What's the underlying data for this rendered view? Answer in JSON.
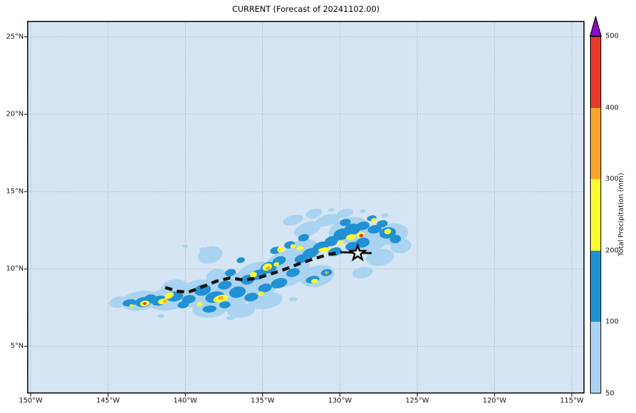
{
  "chart_data": {
    "type": "heatmap",
    "title": "CURRENT (Forecast of 20241102.00)",
    "xlabel": "",
    "ylabel": "",
    "grid": true,
    "lon_range": [
      -150.23,
      -114.18
    ],
    "lat_range": [
      1.95,
      26.03
    ],
    "x_ticks": [
      {
        "lon": -150,
        "label": "150°W"
      },
      {
        "lon": -145,
        "label": "145°W"
      },
      {
        "lon": -140,
        "label": "140°W"
      },
      {
        "lon": -135,
        "label": "135°W"
      },
      {
        "lon": -130,
        "label": "130°W"
      },
      {
        "lon": -125,
        "label": "125°W"
      },
      {
        "lon": -120,
        "label": "120°W"
      },
      {
        "lon": -115,
        "label": "115°W"
      }
    ],
    "y_ticks": [
      {
        "lat": 25,
        "label": "25°N"
      },
      {
        "lat": 20,
        "label": "20°N"
      },
      {
        "lat": 15,
        "label": "15°N"
      },
      {
        "lat": 10,
        "label": "10°N"
      },
      {
        "lat": 5,
        "label": "5°N"
      }
    ],
    "colors": {
      "figure_background": "#ffffff",
      "map_background": "#d5e5f3",
      "grid": "#8f9aa5",
      "frame": "#000000",
      "track": "#141414",
      "star_fill": "#ffffff",
      "star_stroke": "#000000",
      "level_colors": {
        "light": "#a9d3f0",
        "moderate": "#2191d4",
        "heavy": "#fbfb2f",
        "very_heavy": "#fca629",
        "intense": "#e8392b"
      }
    },
    "colorbar": {
      "label": "Total Precipitation (mm)",
      "ticks": [
        "50",
        "100",
        "200",
        "300",
        "400",
        "500"
      ],
      "levels": [
        {
          "range_mm": "50-100",
          "color": "#a9d3f0"
        },
        {
          "range_mm": "100-200",
          "color": "#2191d4"
        },
        {
          "range_mm": "200-300",
          "color": "#fbfb2f"
        },
        {
          "range_mm": "300-400",
          "color": "#fca629"
        },
        {
          "range_mm": "400-500",
          "color": "#e8392b"
        }
      ],
      "over_color": "#8b0bd0"
    },
    "track": {
      "style": "dashed",
      "points": [
        [
          -141.3,
          8.8
        ],
        [
          -140.45,
          8.55
        ],
        [
          -139.8,
          8.5
        ],
        [
          -138.9,
          8.84
        ],
        [
          -138.0,
          9.2
        ],
        [
          -137.1,
          9.42
        ],
        [
          -136.2,
          9.28
        ],
        [
          -135.3,
          9.42
        ],
        [
          -134.4,
          9.7
        ],
        [
          -133.5,
          10.0
        ],
        [
          -132.6,
          10.35
        ],
        [
          -131.7,
          10.65
        ],
        [
          -130.8,
          10.92
        ],
        [
          -129.9,
          11.08
        ]
      ],
      "solid_tail": [
        [
          -129.9,
          11.08
        ],
        [
          -127.95,
          11.02
        ]
      ]
    },
    "storm_center": {
      "lon": -128.85,
      "lat": 11.02,
      "marker": "star"
    },
    "precip_blobs": {
      "light": [
        [
          -144.3,
          7.85,
          14,
          8,
          -10
        ],
        [
          -142.9,
          7.95,
          28,
          14,
          -8
        ],
        [
          -141.1,
          8.05,
          30,
          16,
          -8
        ],
        [
          -139.1,
          8.4,
          30,
          20,
          -10
        ],
        [
          -138.4,
          10.9,
          18,
          12,
          -15
        ],
        [
          -137.1,
          8.6,
          35,
          25,
          -12
        ],
        [
          -135.3,
          9.3,
          35,
          25,
          -15
        ],
        [
          -138.4,
          7.4,
          25,
          12,
          -5
        ],
        [
          -136.4,
          7.3,
          20,
          10,
          -5
        ],
        [
          -133.5,
          10.0,
          35,
          25,
          -18
        ],
        [
          -132.5,
          11.2,
          25,
          15,
          -18
        ],
        [
          -132.1,
          12.56,
          20,
          10,
          -20
        ],
        [
          -130.8,
          13.15,
          18,
          8,
          -15
        ],
        [
          -129.4,
          12.5,
          30,
          18,
          -15
        ],
        [
          -128.1,
          11.9,
          28,
          18,
          -12
        ],
        [
          -126.7,
          12.25,
          25,
          15,
          -10
        ],
        [
          -126.05,
          11.47,
          15,
          10,
          -10
        ],
        [
          -127.4,
          10.75,
          20,
          12,
          -10
        ],
        [
          -129.66,
          13.6,
          12,
          6,
          -15
        ],
        [
          -134.84,
          7.96,
          25,
          12,
          -8
        ],
        [
          -131.45,
          9.54,
          25,
          15,
          -15
        ],
        [
          -128.53,
          9.76,
          15,
          8,
          -10
        ],
        [
          -140.68,
          8.77,
          20,
          12,
          -8
        ],
        [
          -137.99,
          9.54,
          15,
          10,
          -12
        ],
        [
          -133.03,
          13.15,
          15,
          7,
          -15
        ],
        [
          -131.68,
          13.6,
          12,
          6,
          -15
        ],
        [
          -140.01,
          11.47,
          4,
          2.5,
          0
        ],
        [
          -138.88,
          11.25,
          5,
          3,
          0
        ],
        [
          -131.77,
          13.37,
          6,
          3,
          0
        ],
        [
          -130.55,
          13.82,
          5,
          2.5,
          0
        ],
        [
          -128.53,
          13.73,
          4,
          2.5,
          0
        ],
        [
          -127.09,
          13.46,
          5,
          3,
          0
        ],
        [
          -141.58,
          6.96,
          5,
          3,
          0
        ],
        [
          -137.08,
          6.83,
          6,
          3,
          0
        ],
        [
          -133.03,
          8.04,
          6,
          3,
          0
        ]
      ],
      "moderate": [
        [
          -143.61,
          7.81,
          10,
          5,
          -8
        ],
        [
          -142.71,
          7.86,
          12,
          7,
          -8
        ],
        [
          -141.68,
          7.95,
          12,
          7,
          -10
        ],
        [
          -140.68,
          8.22,
          12,
          7,
          -10
        ],
        [
          -139.78,
          8.04,
          10,
          6,
          -10
        ],
        [
          -138.88,
          8.63,
          12,
          8,
          -12
        ],
        [
          -138.08,
          8.18,
          14,
          8,
          -12
        ],
        [
          -137.44,
          8.95,
          10,
          6,
          -12
        ],
        [
          -136.63,
          8.5,
          12,
          8,
          -12
        ],
        [
          -135.96,
          9.31,
          10,
          7,
          -15
        ],
        [
          -135.28,
          9.63,
          12,
          7,
          -15
        ],
        [
          -134.61,
          10.08,
          12,
          8,
          -15
        ],
        [
          -133.93,
          10.53,
          10,
          6,
          -18
        ],
        [
          -133.93,
          9.08,
          12,
          7,
          -15
        ],
        [
          -133.03,
          9.76,
          10,
          6,
          -15
        ],
        [
          -132.49,
          10.66,
          10,
          6,
          -18
        ],
        [
          -131.9,
          11.02,
          12,
          7,
          -18
        ],
        [
          -131.23,
          11.43,
          12,
          7,
          -18
        ],
        [
          -130.55,
          11.79,
          10,
          7,
          -15
        ],
        [
          -129.88,
          12.24,
          12,
          8,
          -15
        ],
        [
          -129.2,
          12.56,
          12,
          8,
          -12
        ],
        [
          -128.53,
          12.78,
          10,
          6,
          -12
        ],
        [
          -127.76,
          12.56,
          10,
          6,
          -10
        ],
        [
          -126.91,
          12.33,
          12,
          8,
          -10
        ],
        [
          -126.41,
          11.93,
          8,
          6,
          -10
        ],
        [
          -130.33,
          11.11,
          10,
          6,
          -15
        ],
        [
          -128.53,
          11.7,
          10,
          7,
          -12
        ],
        [
          -133.25,
          11.56,
          8,
          5,
          -15
        ],
        [
          -132.35,
          12.02,
          8,
          5,
          -15
        ],
        [
          -138.43,
          7.41,
          10,
          5,
          -5
        ],
        [
          -137.44,
          7.68,
          8,
          5,
          -5
        ],
        [
          -135.73,
          8.18,
          10,
          6,
          -10
        ],
        [
          -140.14,
          7.68,
          8,
          5,
          -8
        ],
        [
          -142.26,
          8.13,
          8,
          5,
          -8
        ],
        [
          -131.77,
          9.31,
          10,
          5,
          -12
        ],
        [
          -130.87,
          9.76,
          8,
          5,
          -12
        ],
        [
          -129.2,
          11.47,
          10,
          6,
          -12
        ],
        [
          -134.84,
          8.77,
          10,
          6,
          -12
        ],
        [
          -137.08,
          9.76,
          8,
          5,
          -12
        ],
        [
          -136.41,
          10.57,
          6,
          4,
          -12
        ],
        [
          -134.16,
          11.2,
          8,
          5,
          -15
        ],
        [
          -127.27,
          12.92,
          8,
          5,
          -10
        ],
        [
          -127.94,
          13.28,
          7,
          4,
          -10
        ],
        [
          -129.65,
          13.01,
          8,
          5,
          -10
        ]
      ],
      "heavy": [
        [
          -142.62,
          7.77,
          7,
          4,
          -8
        ],
        [
          -141.45,
          7.9,
          7,
          4,
          -10
        ],
        [
          -141.04,
          8.27,
          7,
          4,
          -25
        ],
        [
          -137.71,
          8.09,
          11,
          5,
          -15
        ],
        [
          -135.59,
          9.63,
          5,
          4,
          -15
        ],
        [
          -134.7,
          10.12,
          7,
          5,
          -20
        ],
        [
          -134.11,
          10.3,
          4,
          3,
          -20
        ],
        [
          -133.84,
          11.25,
          5,
          4,
          -15
        ],
        [
          -132.58,
          11.34,
          5,
          3,
          -15
        ],
        [
          -131.0,
          11.25,
          9,
          3,
          -8
        ],
        [
          -131.64,
          9.22,
          5,
          3,
          -10
        ],
        [
          -129.29,
          12.06,
          7,
          4,
          -12
        ],
        [
          -128.66,
          12.2,
          6,
          4,
          -12
        ],
        [
          -127.8,
          13.15,
          4,
          3,
          -10
        ],
        [
          -126.91,
          12.42,
          5,
          4,
          -10
        ],
        [
          -129.97,
          11.7,
          5,
          3,
          -10
        ],
        [
          -133.03,
          11.47,
          4,
          3,
          -10
        ],
        [
          -135.1,
          8.41,
          4,
          3,
          -10
        ],
        [
          -139.06,
          7.72,
          4,
          3,
          -10
        ],
        [
          -143.47,
          7.63,
          3,
          2,
          0
        ]
      ],
      "very_heavy": [
        [
          -137.71,
          8.13,
          4,
          2.5,
          -15
        ],
        [
          -134.65,
          10.05,
          3.5,
          2.5,
          -20
        ],
        [
          -141.31,
          7.9,
          3,
          2,
          -10
        ],
        [
          -130.87,
          9.76,
          2.5,
          2,
          0
        ]
      ],
      "intense": [
        [
          -142.62,
          7.77,
          2.5,
          2,
          0
        ],
        [
          -128.62,
          12.15,
          3,
          2.5,
          0
        ]
      ]
    }
  }
}
